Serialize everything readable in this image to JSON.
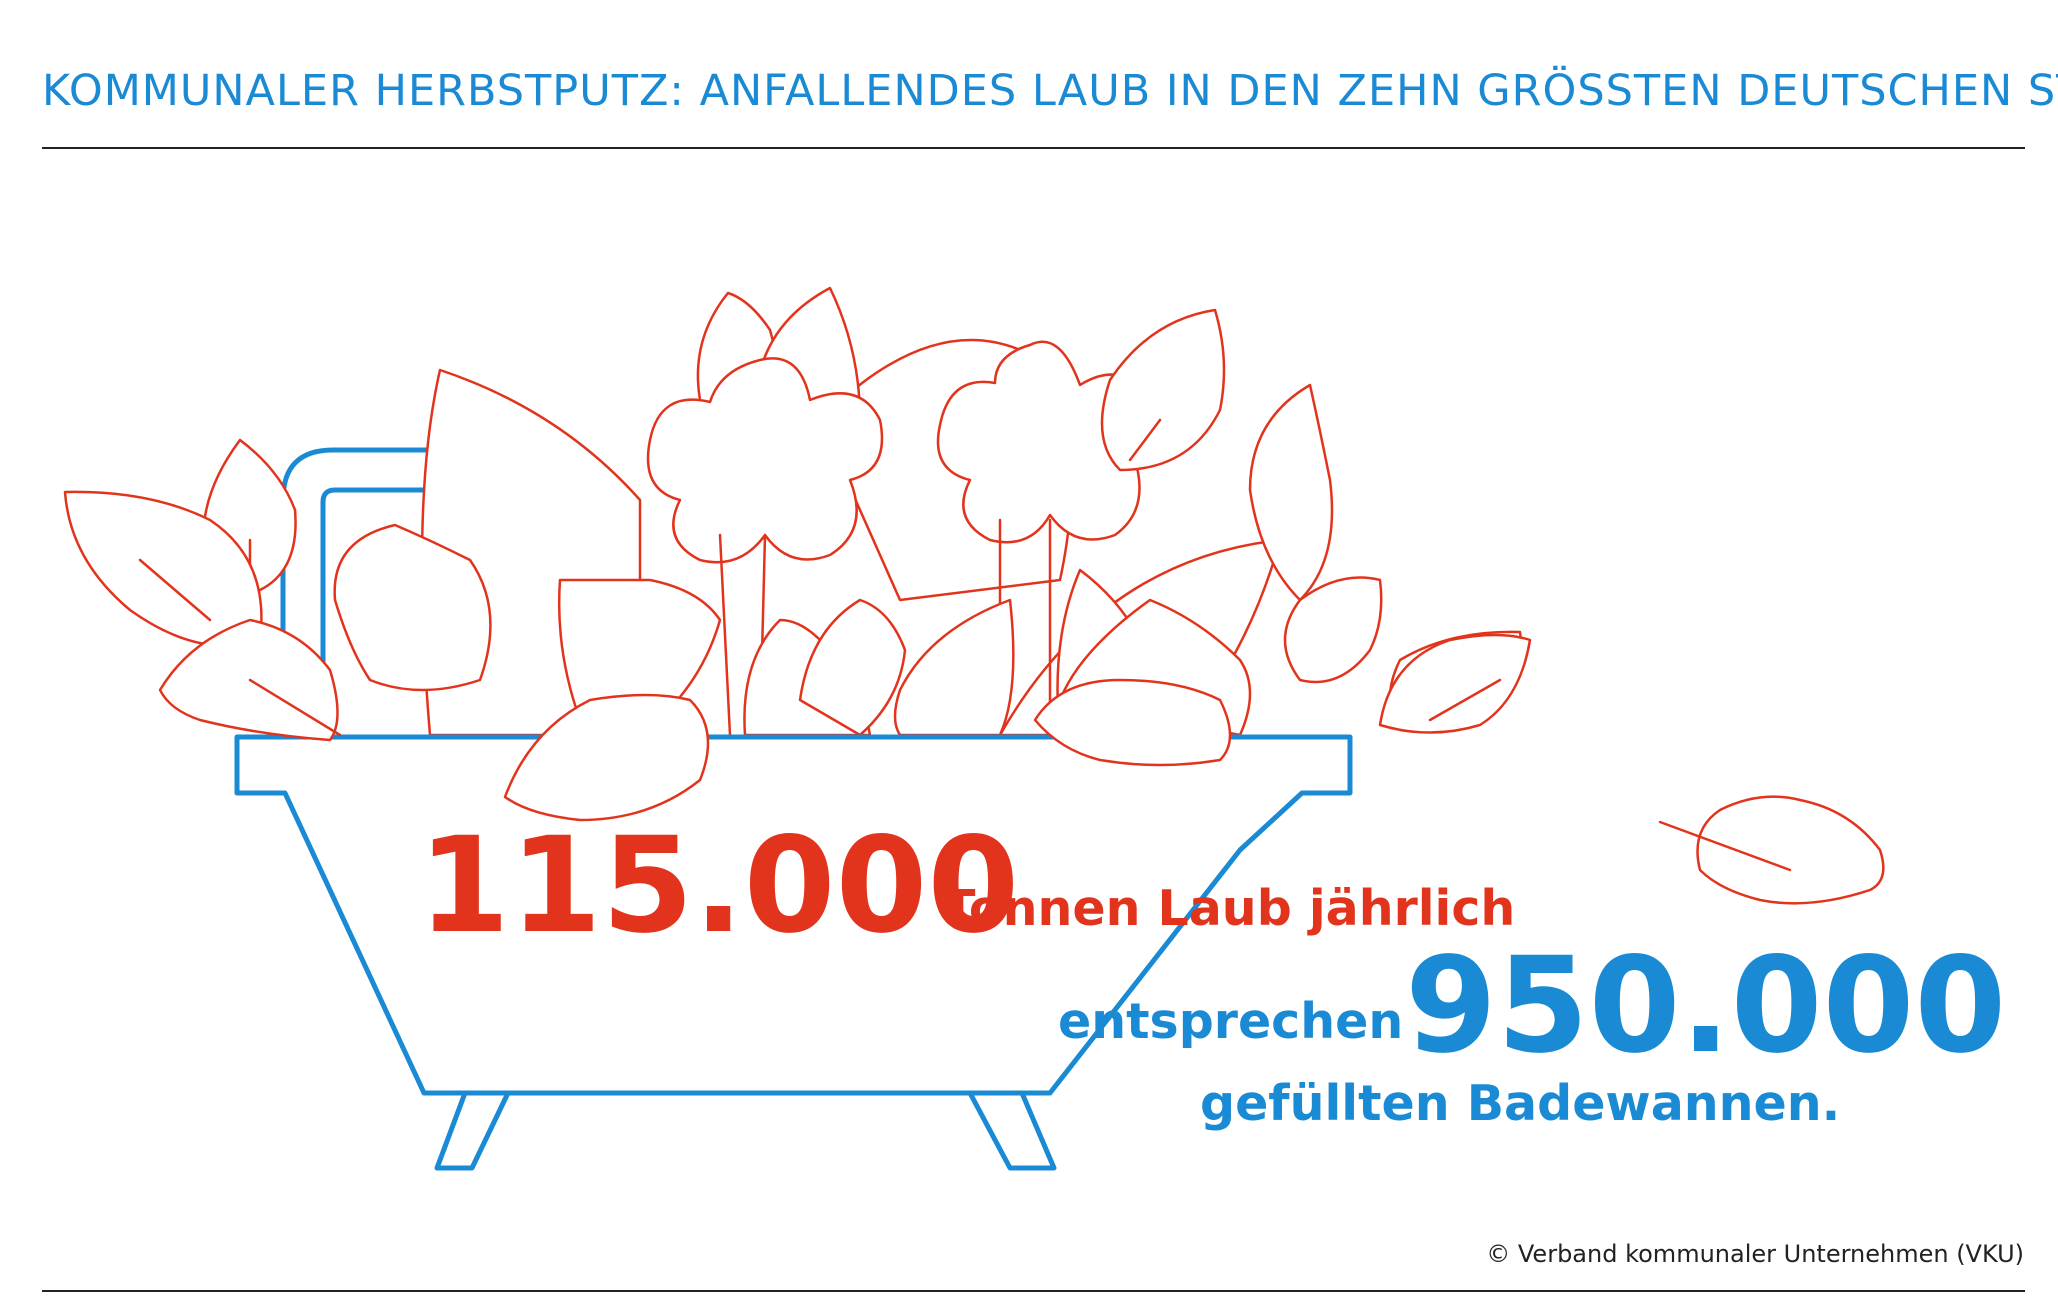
{
  "header": {
    "title": "KOMMUNALER HERBSTPUTZ: ANFALLENDES LAUB IN DEN ZEHN GRÖSSTEN DEUTSCHEN STÄDTEN"
  },
  "stats": {
    "leaves_value": "115.000",
    "leaves_text": "Tonnen Laub jährlich",
    "equivalent_prefix": "entsprechen",
    "bathtubs_value": "950.000",
    "bathtubs_text": "gefüllten Badewannen."
  },
  "footer": {
    "source": "© Verband kommunaler Unternehmen (VKU)"
  },
  "colors": {
    "blue": "#1a8ad4",
    "red": "#e2341d",
    "rule": "#222222"
  },
  "icons": [
    "bathtub-icon",
    "faucet-icon",
    "leaf-icon"
  ]
}
